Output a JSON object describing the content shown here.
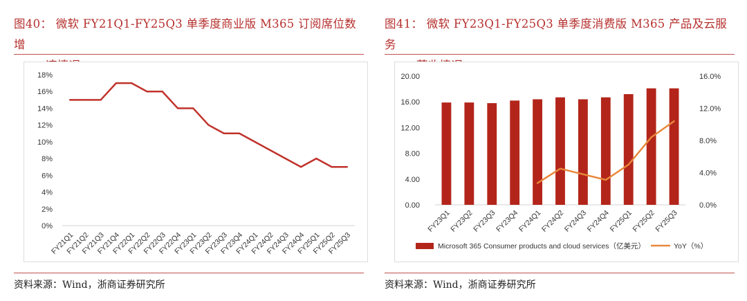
{
  "chart1": {
    "title_line1": "图40： 微软 FY21Q1-FY25Q3 单季度商业版 M365 订阅席位数增",
    "title_line2": "速情况",
    "source": "资料来源：Wind，浙商证券研究所",
    "colors": {
      "line": "#c0322b",
      "axis": "#d0d0d0",
      "text": "#333333"
    }
  },
  "chart2": {
    "title_line1": "图41： 微软 FY23Q1-FY25Q3 单季度消费版 M365 产品及云服务",
    "title_line2": "营收情况",
    "source": "资料来源：Wind，浙商证券研究所",
    "colors": {
      "bar": "#b3251a",
      "line": "#e8873a",
      "axis": "#d0d0d0",
      "text": "#333333"
    }
  },
  "chart_data": [
    {
      "type": "line",
      "categories": [
        "FY21Q1",
        "FY21Q2",
        "FY21Q3",
        "FY21Q4",
        "FY22Q1",
        "FY22Q2",
        "FY22Q3",
        "FY22Q4",
        "FY23Q1",
        "FY23Q2",
        "FY23Q3",
        "FY23Q4",
        "FY24Q1",
        "FY24Q2",
        "FY24Q3",
        "FY24Q4",
        "FY25Q1",
        "FY25Q2",
        "FY25Q3"
      ],
      "values": [
        15,
        15,
        15,
        17,
        17,
        16,
        16,
        14,
        14,
        12,
        11,
        11,
        10,
        9,
        8,
        7,
        8,
        7,
        7
      ],
      "unit": "%",
      "ylim": [
        0,
        18
      ],
      "yticks": [
        "0%",
        "2%",
        "4%",
        "6%",
        "8%",
        "10%",
        "12%",
        "14%",
        "16%",
        "18%"
      ],
      "grid": false,
      "legend": "none"
    },
    {
      "type": "bar",
      "categories": [
        "FY23Q1",
        "FY23Q2",
        "FY23Q3",
        "FY23Q4",
        "FY24Q1",
        "FY24Q2",
        "FY24Q3",
        "FY24Q4",
        "FY25Q1",
        "FY25Q2",
        "FY25Q3"
      ],
      "series": [
        {
          "name": "Microsoft 365 Consumer products and cloud services（亿美元）",
          "type": "bar",
          "axis": "left",
          "values": [
            15.9,
            15.9,
            15.8,
            16.2,
            16.4,
            16.7,
            16.4,
            16.7,
            17.2,
            18.1,
            18.1
          ]
        },
        {
          "name": "YoY（%）",
          "type": "line",
          "axis": "right",
          "values": [
            null,
            null,
            null,
            null,
            2.7,
            4.5,
            3.8,
            3.1,
            5.0,
            8.4,
            10.4
          ]
        }
      ],
      "ylim_left": [
        0,
        20
      ],
      "yticks_left": [
        "0.00",
        "4.00",
        "8.00",
        "12.00",
        "16.00",
        "20.00"
      ],
      "ylim_right": [
        0,
        16
      ],
      "yticks_right": [
        "0.0%",
        "4.0%",
        "8.0%",
        "12.0%",
        "16.0%"
      ],
      "grid": false,
      "legend": "bottom"
    }
  ]
}
